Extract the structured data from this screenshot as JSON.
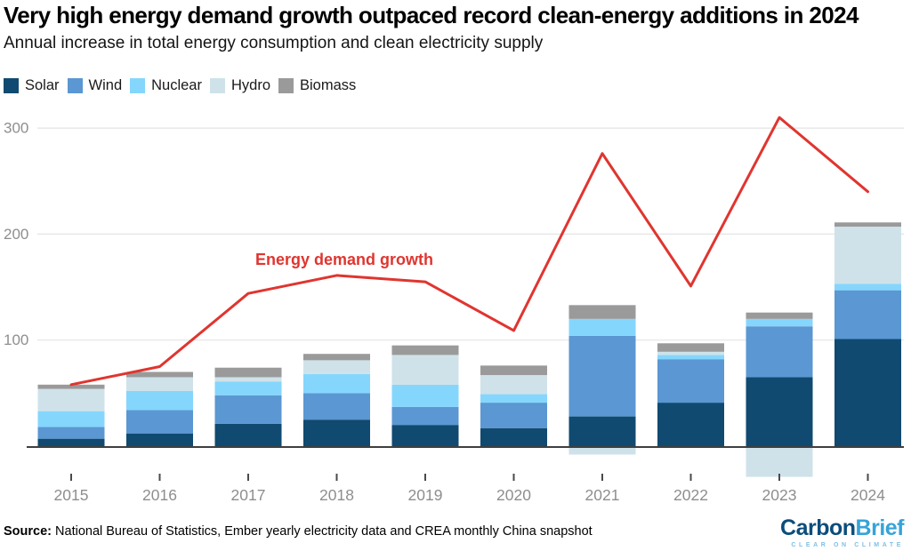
{
  "chart_data": {
    "type": "bar",
    "stacked": true,
    "title": "Very high energy demand growth outpaced record clean-energy additions in 2024",
    "subtitle": "Annual increase in total energy consumption and clean electricity supply",
    "categories": [
      "2015",
      "2016",
      "2017",
      "2018",
      "2019",
      "2020",
      "2021",
      "2022",
      "2023",
      "2024"
    ],
    "series": [
      {
        "name": "Solar",
        "color": "#104a71",
        "values": [
          7,
          12,
          21,
          25,
          20,
          17,
          28,
          41,
          65,
          101
        ]
      },
      {
        "name": "Wind",
        "color": "#5b97d2",
        "values": [
          11,
          22,
          27,
          25,
          17,
          24,
          76,
          41,
          48,
          46
        ]
      },
      {
        "name": "Nuclear",
        "color": "#85d6fd",
        "values": [
          15,
          18,
          13,
          18,
          21,
          8,
          16,
          4,
          7,
          6
        ]
      },
      {
        "name": "Hydro",
        "color": "#cfe2ea",
        "values": [
          21,
          13,
          4,
          13,
          28,
          18,
          -8,
          3,
          -29,
          54
        ]
      },
      {
        "name": "Biomass",
        "color": "#9a9a9a",
        "values": [
          4,
          5,
          9,
          6,
          9,
          9,
          13,
          8,
          6,
          4
        ]
      }
    ],
    "line_series": {
      "name": "Energy demand growth",
      "color": "#e0352f",
      "values": [
        58,
        75,
        144,
        161,
        155,
        109,
        276,
        151,
        310,
        240
      ]
    },
    "yticks": [
      100,
      200,
      300
    ],
    "ylim": [
      -35,
      325
    ],
    "grid": true,
    "legend_position": "top-left",
    "colors": {
      "grid": "#e4e4e4",
      "axis": "#3f3f3f",
      "tick_label": "#8e8e8e",
      "x_tick": "#4a4a4a"
    }
  },
  "footer": {
    "source_label": "Source:",
    "source_text": "National Bureau of Statistics, Ember yearly electricity data and CREA monthly China snapshot",
    "logo": {
      "part1": "Carbon",
      "part2": "Brief",
      "tagline": "CLEAR ON CLIMATE"
    }
  }
}
